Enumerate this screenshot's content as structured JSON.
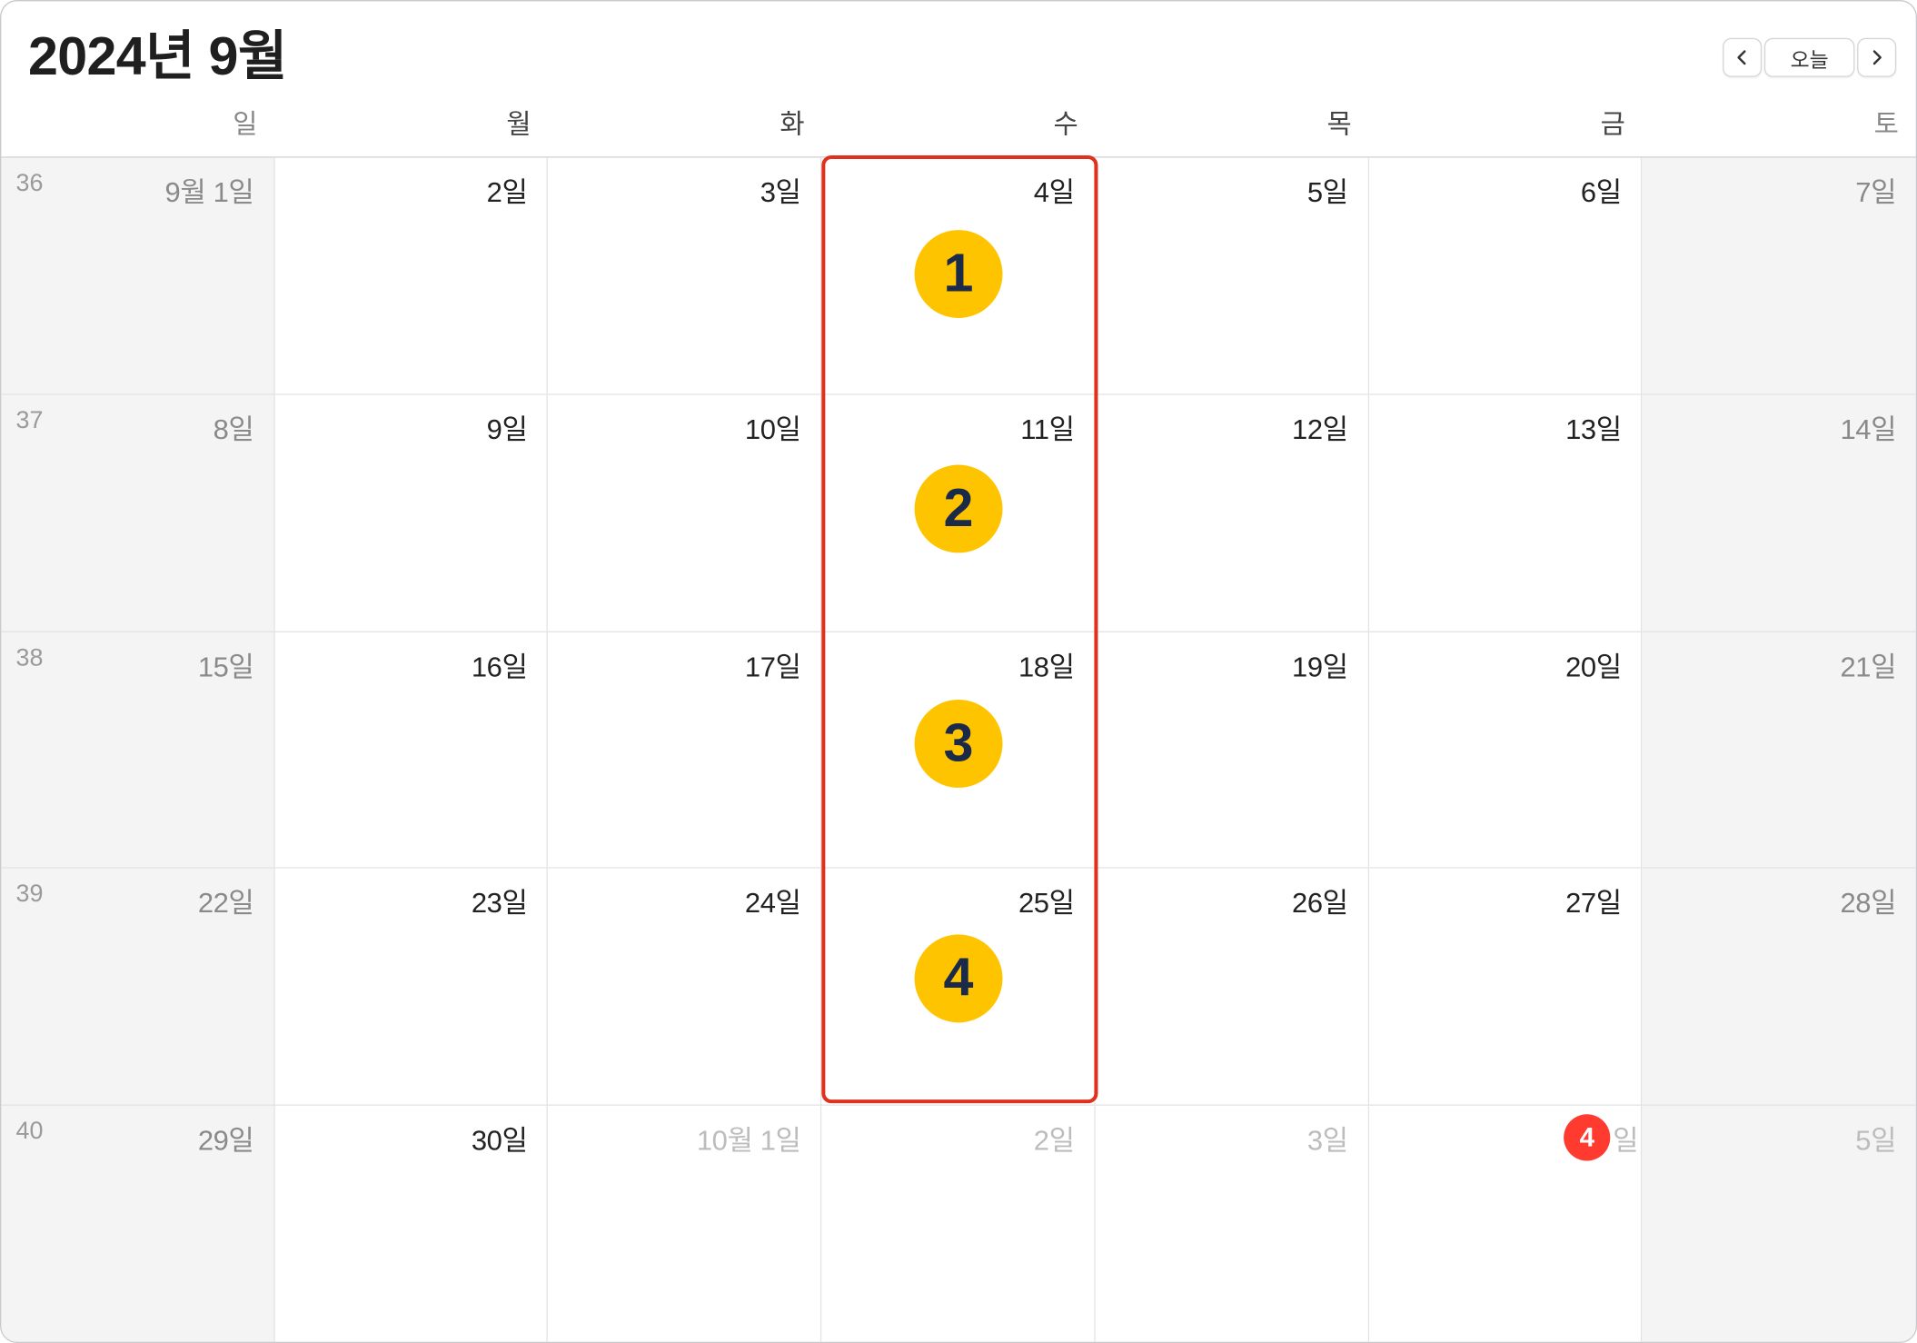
{
  "header": {
    "title": "2024년 9월",
    "today_button": "오늘"
  },
  "weekdays": [
    "일",
    "월",
    "화",
    "수",
    "목",
    "금",
    "토"
  ],
  "weeks": [
    {
      "number": "36",
      "days": [
        {
          "label": "9월 1일"
        },
        {
          "label": "2일"
        },
        {
          "label": "3일"
        },
        {
          "label": "4일"
        },
        {
          "label": "5일"
        },
        {
          "label": "6일"
        },
        {
          "label": "7일"
        }
      ]
    },
    {
      "number": "37",
      "days": [
        {
          "label": "8일"
        },
        {
          "label": "9일"
        },
        {
          "label": "10일"
        },
        {
          "label": "11일"
        },
        {
          "label": "12일"
        },
        {
          "label": "13일"
        },
        {
          "label": "14일"
        }
      ]
    },
    {
      "number": "38",
      "days": [
        {
          "label": "15일"
        },
        {
          "label": "16일"
        },
        {
          "label": "17일"
        },
        {
          "label": "18일"
        },
        {
          "label": "19일"
        },
        {
          "label": "20일"
        },
        {
          "label": "21일"
        }
      ]
    },
    {
      "number": "39",
      "days": [
        {
          "label": "22일"
        },
        {
          "label": "23일"
        },
        {
          "label": "24일"
        },
        {
          "label": "25일"
        },
        {
          "label": "26일"
        },
        {
          "label": "27일"
        },
        {
          "label": "28일"
        }
      ]
    },
    {
      "number": "40",
      "days": [
        {
          "label": "29일"
        },
        {
          "label": "30일"
        },
        {
          "label": "10월 1일",
          "other_month": true
        },
        {
          "label": "2일",
          "other_month": true
        },
        {
          "label": "3일",
          "other_month": true
        },
        {
          "today_number": "4",
          "today_suffix": "일",
          "other_month": true,
          "is_today": true
        },
        {
          "label": "5일",
          "other_month": true
        }
      ]
    }
  ],
  "markers": [
    "1",
    "2",
    "3",
    "4"
  ],
  "colors": {
    "highlight_border": "#e0301e",
    "marker_fill": "#ffc400",
    "today_badge": "#ff3b30"
  },
  "icons": {
    "prev": "chevron-left-icon",
    "next": "chevron-right-icon"
  }
}
